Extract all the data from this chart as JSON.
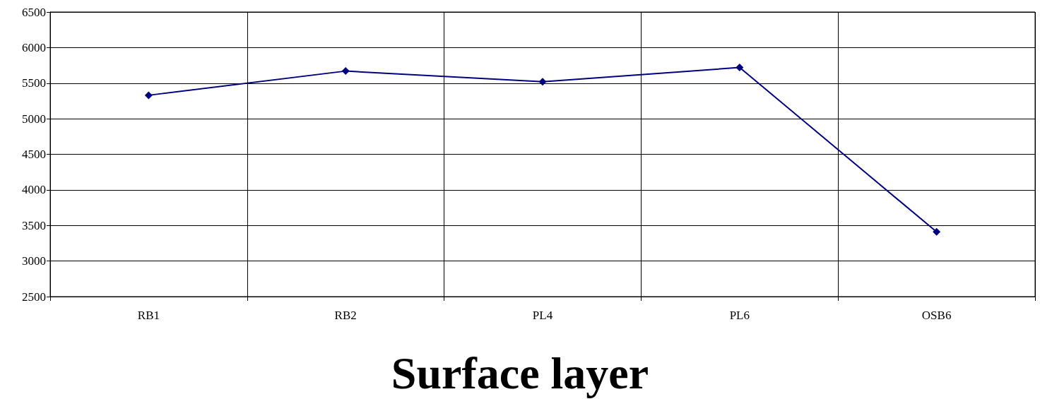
{
  "chart_data": {
    "type": "line",
    "title": "Surface layer",
    "categories": [
      "RB1",
      "RB2",
      "PL4",
      "PL6",
      "OSB6"
    ],
    "series": [
      {
        "color": "#000080",
        "values": [
          5330,
          5670,
          5520,
          5720,
          3410
        ]
      }
    ],
    "ylim": [
      2500,
      6500
    ],
    "yticks": [
      2500,
      3000,
      3500,
      4000,
      4500,
      5000,
      5500,
      6000,
      6500
    ],
    "grid": true,
    "marker": "diamond",
    "line_style": "solid"
  }
}
